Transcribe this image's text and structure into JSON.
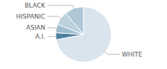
{
  "chart_data": {
    "type": "pie",
    "categories": [
      "WHITE",
      "A.I.",
      "ASIAN",
      "HISPANIC",
      "BLACK"
    ],
    "values": [
      72,
      4,
      5,
      8,
      11
    ],
    "colors": [
      "#d9e4ee",
      "#4e7fa0",
      "#a0bece",
      "#bcd0dc",
      "#b0c8d5"
    ]
  }
}
